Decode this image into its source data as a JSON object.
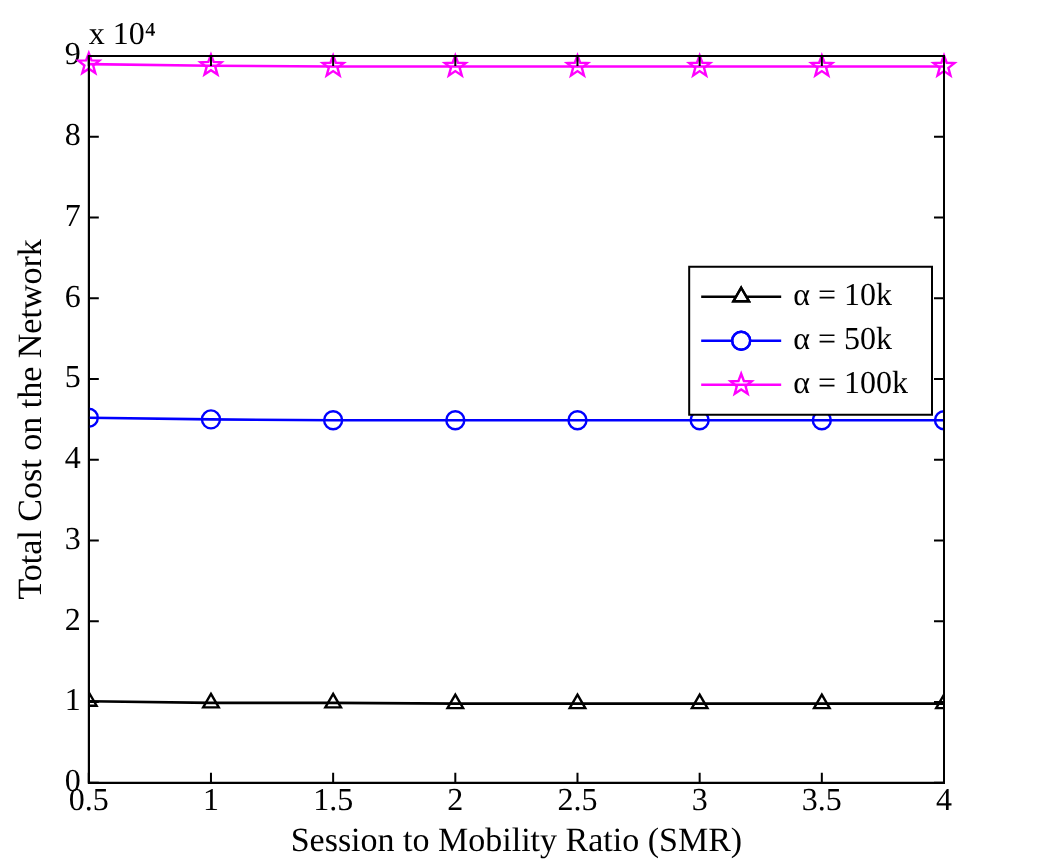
{
  "chart_data": {
    "type": "line",
    "xlabel": "Session to Mobility Ratio (SMR)",
    "ylabel": "Total Cost on the Network",
    "annotations": [
      "x 10⁴"
    ],
    "x": [
      0.5,
      1,
      1.5,
      2,
      2.5,
      3,
      3.5,
      4
    ],
    "series": [
      {
        "name": "α = 10k",
        "color": "#000000",
        "marker": "triangle",
        "values": [
          1.01,
          0.99,
          0.99,
          0.98,
          0.98,
          0.98,
          0.98,
          0.98
        ]
      },
      {
        "name": "α = 50k",
        "color": "#0000ff",
        "marker": "circle",
        "values": [
          4.52,
          4.5,
          4.49,
          4.49,
          4.49,
          4.49,
          4.49,
          4.49
        ]
      },
      {
        "name": "α = 100k",
        "color": "#ff00ff",
        "marker": "star",
        "values": [
          8.9,
          8.88,
          8.87,
          8.87,
          8.87,
          8.87,
          8.87,
          8.87
        ]
      }
    ],
    "xlim": [
      0.5,
      4
    ],
    "xticks": [
      {
        "value": 0.5,
        "label": "0.5"
      },
      1,
      {
        "value": 1.5,
        "label": "1.5"
      },
      2,
      {
        "value": 2.5,
        "label": "2.5"
      },
      3,
      {
        "value": 3.5,
        "label": "3.5"
      },
      4
    ],
    "ylim": [
      0,
      9
    ],
    "yticks": [
      0,
      1,
      2,
      3,
      4,
      5,
      6,
      7,
      8,
      9
    ],
    "grid": false,
    "legend": "top right",
    "line_style": "solid"
  }
}
